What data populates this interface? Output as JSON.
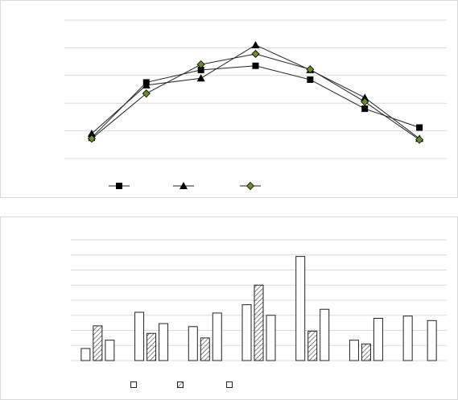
{
  "chart_data": [
    {
      "type": "line",
      "title": "",
      "xlabel": "",
      "ylabel": "",
      "ylim": [
        0,
        5
      ],
      "grid": true,
      "legend_position": "bottom-left",
      "x": [
        1,
        2,
        3,
        4,
        5,
        6,
        7
      ],
      "series": [
        {
          "marker": "square",
          "color": "#000000",
          "values": [
            0.75,
            2.75,
            3.2,
            3.35,
            2.85,
            1.8,
            1.12
          ]
        },
        {
          "marker": "triangle",
          "color": "#000000",
          "values": [
            0.9,
            2.65,
            2.9,
            4.1,
            3.2,
            2.2,
            0.72
          ]
        },
        {
          "marker": "diamond",
          "color": "#6b8e23",
          "values": [
            0.72,
            2.35,
            3.4,
            3.78,
            3.22,
            2.05,
            0.68
          ]
        }
      ]
    },
    {
      "type": "bar",
      "title": "",
      "xlabel": "",
      "ylabel": "",
      "ylim": [
        0,
        8
      ],
      "grid": true,
      "legend_position": "bottom-left",
      "categories": [
        "",
        "",
        "",
        "",
        "",
        "",
        ""
      ],
      "series": [
        {
          "pattern": "open",
          "values": [
            0.8,
            3.2,
            2.25,
            3.7,
            6.9,
            1.35,
            2.95
          ]
        },
        {
          "pattern": "hatch",
          "values": [
            2.3,
            1.8,
            1.5,
            5.0,
            1.95,
            1.1,
            null
          ]
        },
        {
          "pattern": "open",
          "values": [
            1.35,
            2.45,
            3.15,
            3.0,
            3.4,
            2.8,
            2.65
          ]
        }
      ]
    }
  ]
}
